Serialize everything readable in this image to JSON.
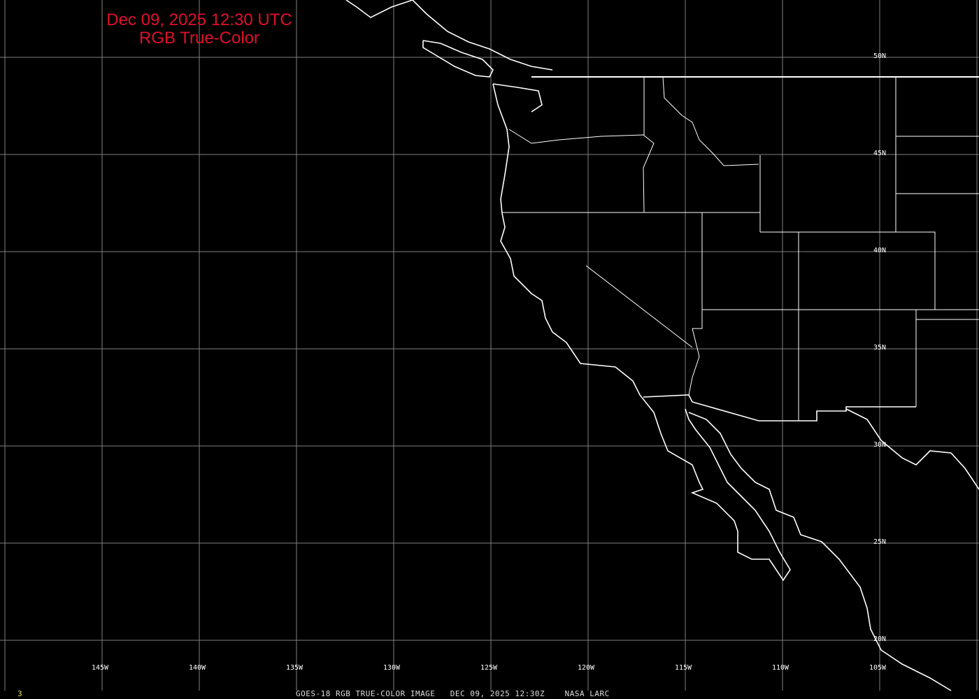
{
  "title": {
    "line1": "Dec 09, 2025 12:30 UTC",
    "line2": "RGB True-Color"
  },
  "footer": {
    "frame_number": "3",
    "caption": "GOES-18 RGB TRUE-COLOR IMAGE   DEC 09, 2025 12:30Z    NASA LARC"
  },
  "grid": {
    "longitudes": [
      "145W",
      "140W",
      "135W",
      "130W",
      "125W",
      "120W",
      "115W",
      "110W",
      "105W"
    ],
    "latitudes": [
      "50N",
      "45N",
      "40N",
      "35N",
      "30N",
      "20N",
      "25N"
    ]
  },
  "colors": {
    "title": "#e0102a",
    "grid": "#808080",
    "borders": "#ffffff",
    "background": "#000000",
    "frame_number": "#e8e060"
  }
}
